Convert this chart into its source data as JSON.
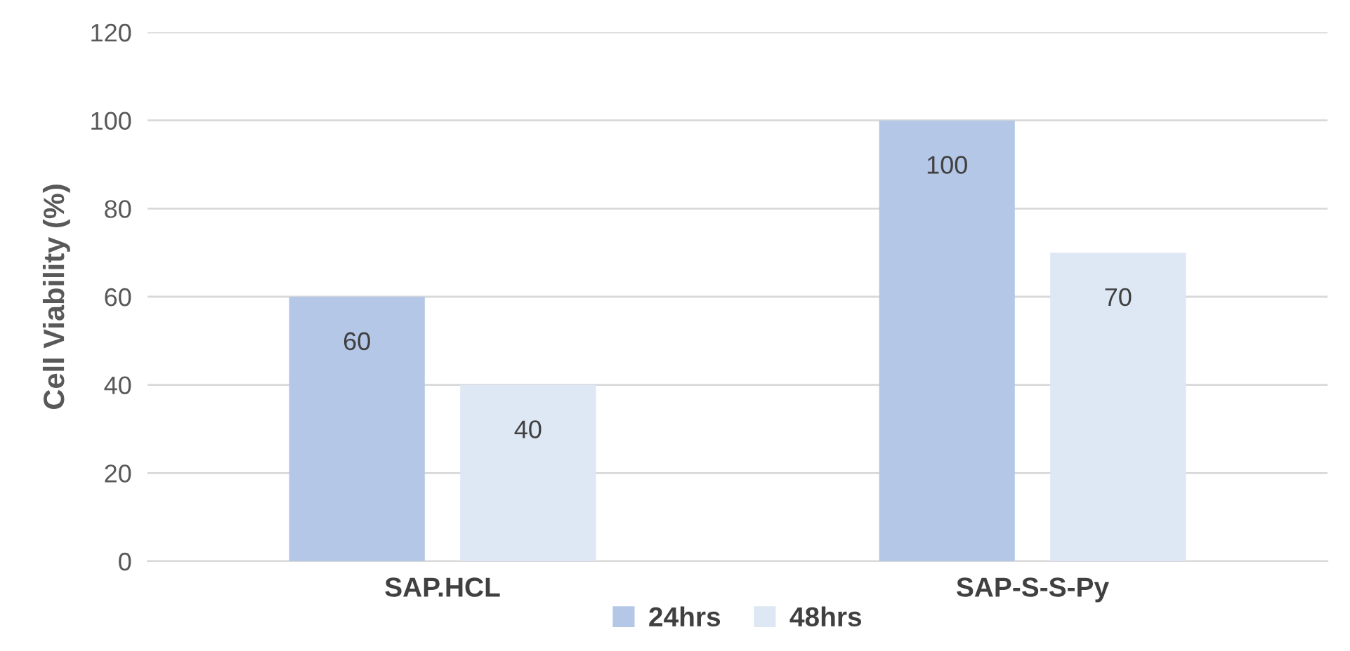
{
  "chart_data": {
    "type": "bar",
    "ylabel": "Cell Viability (%)",
    "categories": [
      "SAP.HCL",
      "SAP-S-S-Py"
    ],
    "series": [
      {
        "name": "24hrs",
        "color": "#b4c7e7",
        "values": [
          60,
          100
        ]
      },
      {
        "name": "48hrs",
        "color": "#dee7f4",
        "values": [
          40,
          70
        ]
      }
    ],
    "ylim": [
      0,
      120
    ],
    "yticks": [
      0,
      20,
      40,
      60,
      80,
      100,
      120
    ],
    "grid": "y",
    "legend": "bottom",
    "data_labels": true
  }
}
